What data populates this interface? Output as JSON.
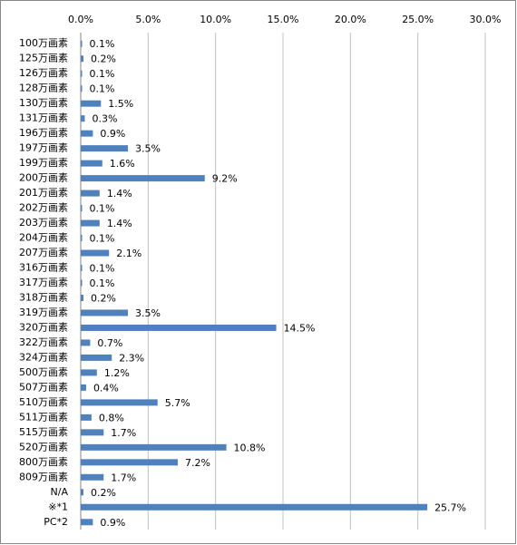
{
  "chart_data": {
    "type": "bar",
    "orientation": "horizontal",
    "categories": [
      "100万画素",
      "125万画素",
      "126万画素",
      "128万画素",
      "130万画素",
      "131万画素",
      "196万画素",
      "197万画素",
      "199万画素",
      "200万画素",
      "201万画素",
      "202万画素",
      "203万画素",
      "204万画素",
      "207万画素",
      "316万画素",
      "317万画素",
      "318万画素",
      "319万画素",
      "320万画素",
      "322万画素",
      "324万画素",
      "500万画素",
      "507万画素",
      "510万画素",
      "511万画素",
      "515万画素",
      "520万画素",
      "800万画素",
      "809万画素",
      "N/A",
      "※*1",
      "PC*2"
    ],
    "values": [
      0.1,
      0.2,
      0.1,
      0.1,
      1.5,
      0.3,
      0.9,
      3.5,
      1.6,
      9.2,
      1.4,
      0.1,
      1.4,
      0.1,
      2.1,
      0.1,
      0.1,
      0.2,
      3.5,
      14.5,
      0.7,
      2.3,
      1.2,
      0.4,
      5.7,
      0.8,
      1.7,
      10.8,
      7.2,
      1.7,
      0.2,
      25.7,
      0.9
    ],
    "value_labels": [
      "0.1%",
      "0.2%",
      "0.1%",
      "0.1%",
      "1.5%",
      "0.3%",
      "0.9%",
      "3.5%",
      "1.6%",
      "9.2%",
      "1.4%",
      "0.1%",
      "1.4%",
      "0.1%",
      "2.1%",
      "0.1%",
      "0.1%",
      "0.2%",
      "3.5%",
      "14.5%",
      "0.7%",
      "2.3%",
      "1.2%",
      "0.4%",
      "5.7%",
      "0.8%",
      "1.7%",
      "10.8%",
      "7.2%",
      "1.7%",
      "0.2%",
      "25.7%",
      "0.9%"
    ],
    "color": "#4f81bd",
    "xlim": [
      0,
      30
    ],
    "xticks": [
      {
        "value": 0,
        "label": "0.0%"
      },
      {
        "value": 5,
        "label": "5.0%"
      },
      {
        "value": 10,
        "label": "10.0%"
      },
      {
        "value": 15,
        "label": "15.0%"
      },
      {
        "value": 20,
        "label": "20.0%"
      },
      {
        "value": 25,
        "label": "25.0%"
      },
      {
        "value": 30,
        "label": "30.0%"
      }
    ],
    "grid": true
  }
}
